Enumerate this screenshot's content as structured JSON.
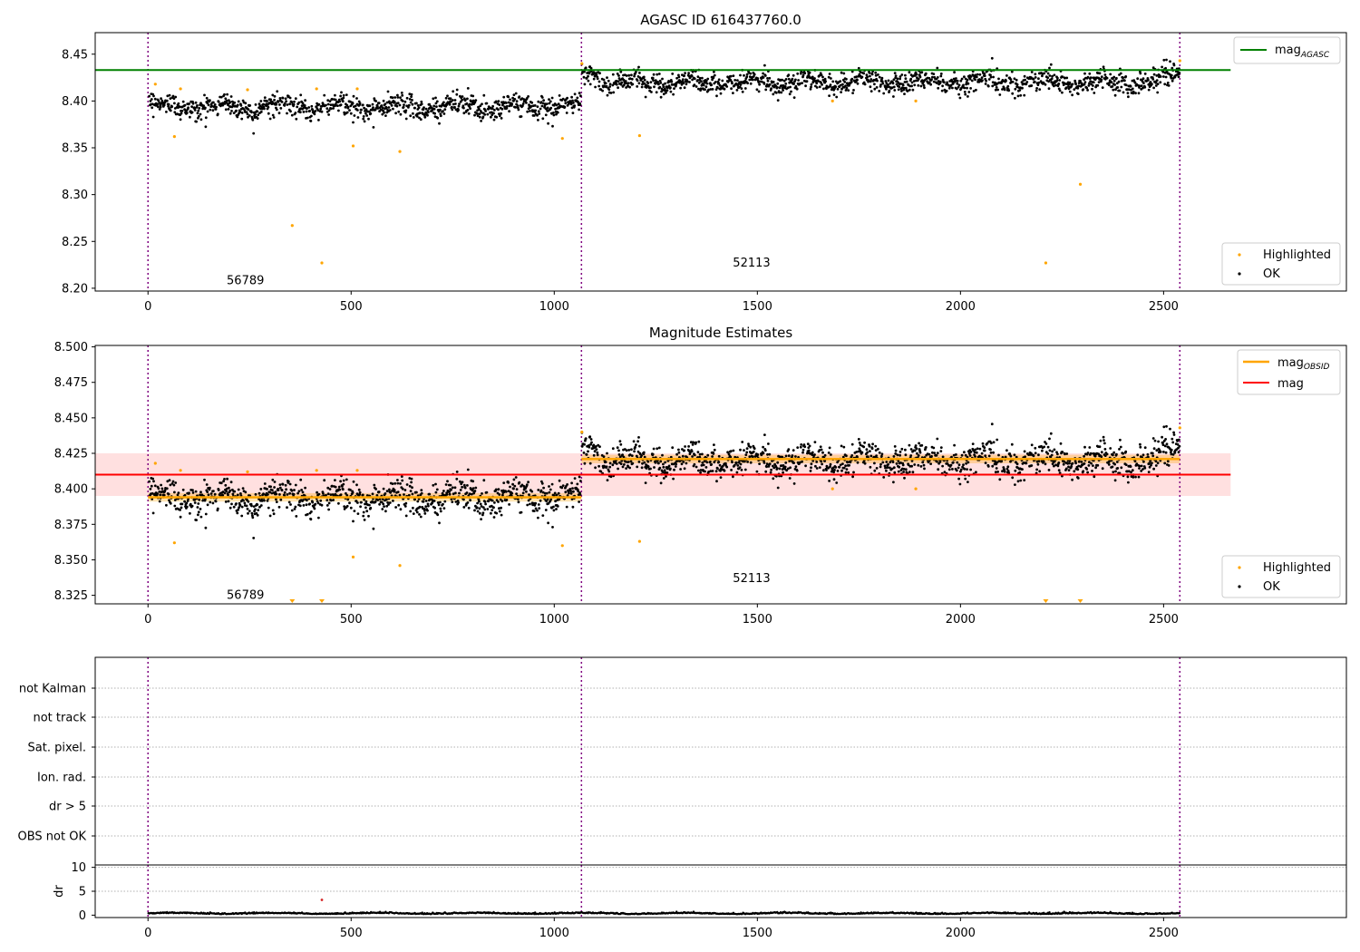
{
  "chart_data": [
    {
      "type": "scatter",
      "title": "AGASC ID 616437760.0",
      "xlim": [
        -130,
        2950
      ],
      "ylim": [
        8.197,
        8.473
      ],
      "xticks": [
        0,
        500,
        1000,
        1500,
        2000,
        2500
      ],
      "yticks": [
        8.2,
        8.25,
        8.3,
        8.35,
        8.4,
        8.45
      ],
      "ytick_labels": [
        "8.20",
        "8.25",
        "8.30",
        "8.35",
        "8.40",
        "8.45"
      ],
      "observation_boundaries": [
        0,
        1067,
        2540
      ],
      "observations": [
        {
          "label": "56789",
          "x_start": 0,
          "x_end": 1067,
          "label_x": 530,
          "label_y": 8.208,
          "mean": 8.394,
          "early_mean": 8.401,
          "amplitude": 0.004,
          "noise": 0.0055
        },
        {
          "label": "52113",
          "x_start": 1067,
          "x_end": 2540,
          "label_x": 1805,
          "label_y": 8.227,
          "mean": 8.42,
          "early_mean": 8.43,
          "amplitude": 0.004,
          "noise": 0.0055
        }
      ],
      "mag_agasc": 8.433,
      "mag_agasc_xrange": [
        -130,
        2665
      ],
      "highlighted": [
        {
          "x": 18,
          "y": 8.418
        },
        {
          "x": 65,
          "y": 8.362
        },
        {
          "x": 80,
          "y": 8.413
        },
        {
          "x": 245,
          "y": 8.412
        },
        {
          "x": 355,
          "y": 8.267
        },
        {
          "x": 415,
          "y": 8.413
        },
        {
          "x": 428,
          "y": 8.227
        },
        {
          "x": 505,
          "y": 8.352
        },
        {
          "x": 515,
          "y": 8.413
        },
        {
          "x": 620,
          "y": 8.346
        },
        {
          "x": 1020,
          "y": 8.36
        },
        {
          "x": 1068,
          "y": 8.44
        },
        {
          "x": 1210,
          "y": 8.363
        },
        {
          "x": 1685,
          "y": 8.4
        },
        {
          "x": 1890,
          "y": 8.4
        },
        {
          "x": 2210,
          "y": 8.227
        },
        {
          "x": 2295,
          "y": 8.311
        },
        {
          "x": 2540,
          "y": 8.443
        }
      ],
      "legend_top": [
        {
          "name": "mag",
          "subscript": "AGASC",
          "color": "#008000",
          "kind": "line"
        }
      ],
      "legend_bottom": [
        {
          "name": "Highlighted",
          "color": "#ffa500",
          "kind": "point"
        },
        {
          "name": "OK",
          "color": "#000000",
          "kind": "point"
        }
      ]
    },
    {
      "type": "scatter",
      "title": "Magnitude Estimates",
      "xlim": [
        -130,
        2950
      ],
      "ylim": [
        8.319,
        8.501
      ],
      "xticks": [
        0,
        500,
        1000,
        1500,
        2000,
        2500
      ],
      "yticks": [
        8.325,
        8.35,
        8.375,
        8.4,
        8.425,
        8.45,
        8.475,
        8.5
      ],
      "ytick_labels": [
        "8.325",
        "8.350",
        "8.375",
        "8.400",
        "8.425",
        "8.450",
        "8.475",
        "8.500"
      ],
      "mag": 8.41,
      "mag_band": [
        8.395,
        8.425
      ],
      "mag_xrange": [
        -130,
        2665
      ],
      "mag_obsid": [
        {
          "x_start": 0,
          "x_end": 1067,
          "value": 8.394,
          "band": [
            8.391,
            8.397
          ]
        },
        {
          "x_start": 1067,
          "x_end": 2540,
          "value": 8.421,
          "band": [
            8.418,
            8.424
          ]
        }
      ],
      "observation_labels": [
        {
          "label": "56789",
          "x": 530,
          "y": 8.325
        },
        {
          "label": "52113",
          "x": 1805,
          "y": 8.337
        }
      ],
      "clipped_low_markers": [
        355,
        428,
        2210,
        2295
      ],
      "legend_top": [
        {
          "name": "mag",
          "subscript": "OBSID",
          "color": "#ffa500",
          "kind": "line"
        },
        {
          "name": "mag",
          "subscript": "",
          "color": "#ff0000",
          "kind": "line"
        }
      ],
      "legend_bottom": [
        {
          "name": "Highlighted",
          "color": "#ffa500",
          "kind": "point"
        },
        {
          "name": "OK",
          "color": "#000000",
          "kind": "point"
        }
      ]
    },
    {
      "type": "scatter",
      "title": "",
      "xlim": [
        -130,
        2950
      ],
      "categories": [
        "not Kalman",
        "not track",
        "Sat. pixel.",
        "Ion. rad.",
        "dr > 5",
        "OBS not OK"
      ],
      "dr_panel": {
        "ylabel": "dr",
        "ylim": [
          -0.5,
          10.5
        ],
        "yticks": [
          0,
          5,
          10
        ],
        "highlight_points": [
          {
            "x": 428,
            "y": 3.2
          }
        ],
        "dr_level": 0.3
      },
      "xticks": [
        0,
        500,
        1000,
        1500,
        2000,
        2500
      ]
    }
  ]
}
